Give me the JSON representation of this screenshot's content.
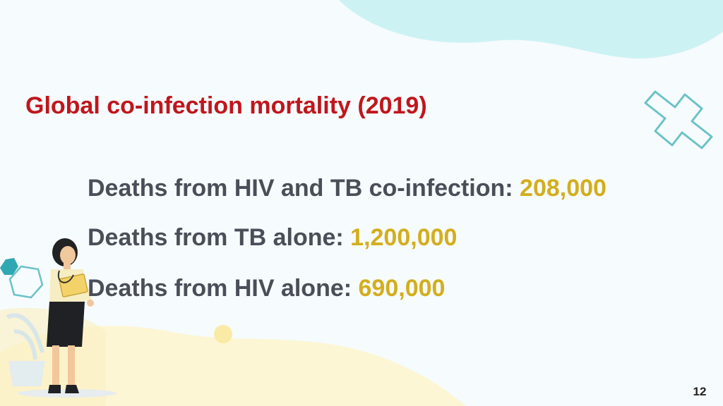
{
  "slide": {
    "title": "Global co-infection mortality (2019)",
    "stats": [
      {
        "label": "Deaths from HIV and TB co-infection: ",
        "value": "208,000"
      },
      {
        "label": "Deaths from TB alone: ",
        "value": "1,200,000"
      },
      {
        "label": "Deaths from HIV alone: ",
        "value": "690,000"
      }
    ],
    "page_number": "12"
  },
  "colors": {
    "title": "#c0161c",
    "stat_text": "#4a4e59",
    "stat_value": "#d3ae1e",
    "bg_blob_top": "#cdf2f4",
    "bg_blob_bottom": "#fdf6d4",
    "cross_outline": "#6cc2c8"
  },
  "icons": [
    "medical-cross-icon",
    "hexagon-icon",
    "doctor-illustration"
  ]
}
